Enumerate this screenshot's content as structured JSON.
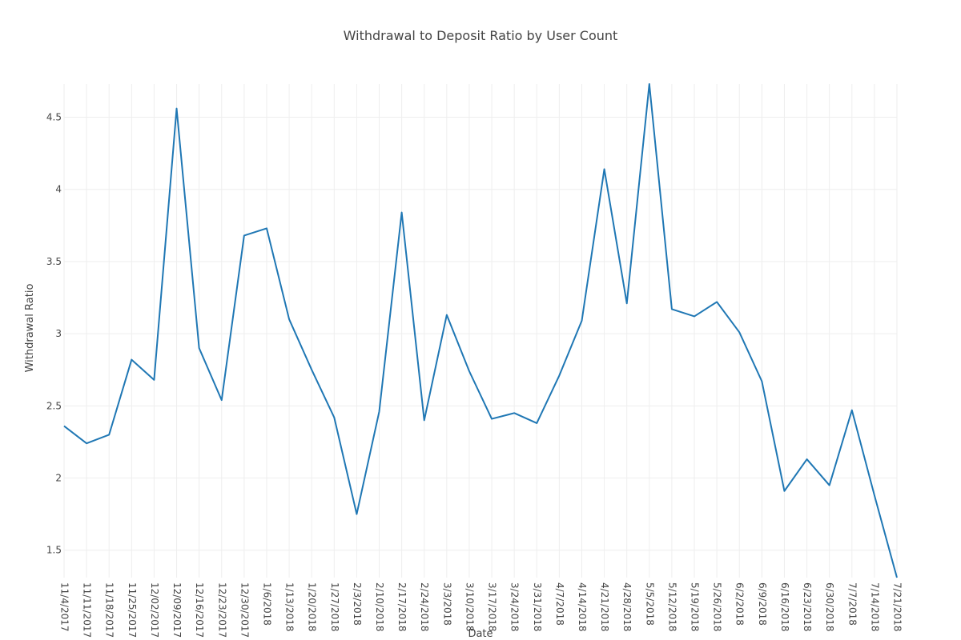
{
  "chart_data": {
    "type": "line",
    "title": "Withdrawal to Deposit Ratio by User Count",
    "xlabel": "Date",
    "ylabel": "Withdrawal Ratio",
    "ylim": [
      1.31,
      4.73
    ],
    "y_ticks": [
      1.5,
      2,
      2.5,
      3,
      3.5,
      4,
      4.5
    ],
    "y_tick_labels": [
      "1.5",
      "2",
      "2.5",
      "3",
      "3.5",
      "4",
      "4.5"
    ],
    "grid": true,
    "categories": [
      "11/4/2017",
      "11/11/2017",
      "11/18/2017",
      "11/25/2017",
      "12/02/2017",
      "12/09/2017",
      "12/16/2017",
      "12/23/2017",
      "12/30/2017",
      "1/6/2018",
      "1/13/2018",
      "1/20/2018",
      "1/27/2018",
      "2/3/2018",
      "2/10/2018",
      "2/17/2018",
      "2/24/2018",
      "3/3/2018",
      "3/10/2018",
      "3/17/2018",
      "3/24/2018",
      "3/31/2018",
      "4/7/2018",
      "4/14/2018",
      "4/21/2018",
      "4/28/2018",
      "5/5/2018",
      "5/12/2018",
      "5/19/2018",
      "5/26/2018",
      "6/2/2018",
      "6/9/2018",
      "6/16/2018",
      "6/23/2018",
      "6/30/2018",
      "7/7/2018",
      "7/14/2018",
      "7/21/2018"
    ],
    "series": [
      {
        "color": "#1f77b4",
        "values": [
          2.36,
          2.24,
          2.3,
          2.82,
          2.68,
          4.56,
          2.9,
          2.54,
          3.68,
          3.73,
          3.1,
          2.75,
          2.42,
          1.75,
          2.46,
          3.84,
          2.4,
          3.13,
          2.74,
          2.41,
          2.45,
          2.38,
          2.71,
          3.09,
          4.14,
          3.21,
          4.73,
          3.17,
          3.12,
          3.22,
          3.01,
          2.67,
          1.91,
          2.13,
          1.95,
          2.47,
          1.88,
          1.31
        ]
      }
    ]
  }
}
